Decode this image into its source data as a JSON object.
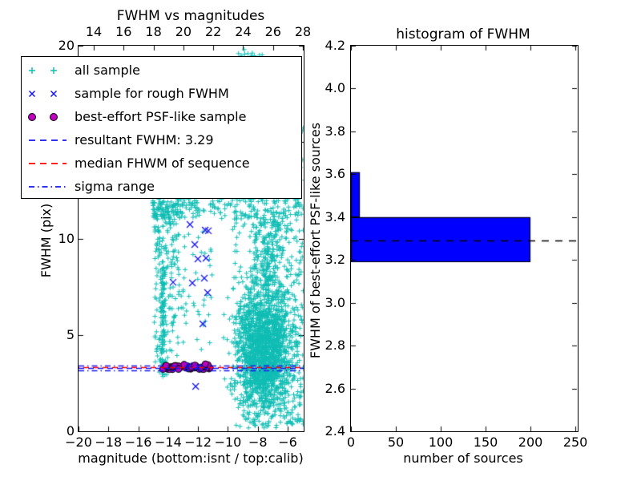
{
  "figure": {
    "background": "#ffffff"
  },
  "chart_data": [
    {
      "id": "fwhm-vs-magnitudes",
      "type": "scatter",
      "title": "FWHM vs magnitudes",
      "xlabel": "magnitude (bottom:isnt / top:calib)",
      "ylabel": "FWHM (pix)",
      "xlim": [
        -20,
        -4.93
      ],
      "ylim": [
        0,
        20
      ],
      "grid": false,
      "bottom_ticks": {
        "values": [
          -20,
          -18,
          -16,
          -14,
          -12,
          -10,
          -8,
          -6
        ],
        "labels": [
          "−20",
          "−18",
          "−16",
          "−14",
          "−12",
          "−10",
          "−8",
          "−6"
        ]
      },
      "top_ticks": {
        "axis_name": "calib magnitude",
        "values": [
          14,
          16,
          18,
          20,
          22,
          24,
          26,
          28
        ],
        "labels": [
          "14",
          "16",
          "18",
          "20",
          "22",
          "24",
          "26",
          "28"
        ],
        "calib_to_isnt_offset": -32.98
      },
      "y_ticks": {
        "values": [
          0,
          5,
          10,
          15,
          20
        ],
        "labels": [
          "0",
          "5",
          "10",
          "15",
          "20"
        ]
      },
      "series": [
        {
          "name": "all sample",
          "marker": "+",
          "color": "#10bdb4",
          "point_clusters": [
            {
              "x": [
                -15.05,
                -13.0
              ],
              "y": [
                11.0,
                12.05
              ],
              "n": 115
            },
            {
              "x": [
                -13.0,
                -9.6
              ],
              "y": [
                11.0,
                12.05
              ],
              "n": 55
            },
            {
              "x": [
                -9.6,
                -4.95
              ],
              "y": [
                11.0,
                12.05
              ],
              "n": 105
            },
            {
              "x": [
                -14.95,
                -13.25
              ],
              "y": [
                8.0,
                11.0
              ],
              "n": 95
            },
            {
              "x": [
                -14.95,
                -13.25
              ],
              "y": [
                4.5,
                8.0
              ],
              "n": 60
            },
            {
              "x": [
                -14.95,
                -13.3
              ],
              "y": [
                3.0,
                4.5
              ],
              "n": 22
            },
            {
              "mx": -14.35,
              "sx": 0.09,
              "y": [
                2.8,
                8.6
              ],
              "n": 90
            },
            {
              "x": [
                -13.25,
                -11.0
              ],
              "y": [
                4.2,
                11.0
              ],
              "n": 42
            },
            {
              "mx": -7.6,
              "sx": 0.95,
              "my": 4.5,
              "sy": 1.55,
              "n": 1500
            },
            {
              "x": [
                -9.7,
                -4.95
              ],
              "y": [
                1.3,
                11.0
              ],
              "n": 300
            },
            {
              "mx": -7.3,
              "sx": 0.6,
              "y": [
                7.5,
                11.0
              ],
              "n": 180
            },
            {
              "x": [
                -9.0,
                -4.95
              ],
              "y": [
                0.15,
                2.2
              ],
              "n": 115
            },
            {
              "mx": -7.6,
              "sx": 0.9,
              "y": [
                2.2,
                3.2
              ],
              "n": 95
            },
            {
              "x": [
                -5.55,
                -4.95
              ],
              "y": [
                3.5,
                16.3
              ],
              "n": 24
            },
            {
              "x": [
                -9.45,
                -8.2
              ],
              "y": [
                19.25,
                19.8
              ],
              "n": 13
            },
            {
              "x": [
                -7.9,
                -7.7
              ],
              "y": [
                19.4,
                19.55
              ],
              "n": 2
            }
          ]
        },
        {
          "name": "sample for rough FWHM",
          "marker": "x",
          "color": "#1515ee",
          "points": [
            [
              -12.54,
              10.73
            ],
            [
              -11.52,
              10.44
            ],
            [
              -11.31,
              10.4
            ],
            [
              -12.22,
              9.69
            ],
            [
              -12.01,
              8.94
            ],
            [
              -11.47,
              8.98
            ],
            [
              -11.58,
              7.94
            ],
            [
              -13.67,
              7.73
            ],
            [
              -12.38,
              7.69
            ],
            [
              -11.36,
              7.19
            ],
            [
              -11.68,
              5.57
            ],
            [
              -12.16,
              2.33
            ],
            [
              -12.59,
              3.41
            ],
            [
              -12.0,
              3.33
            ]
          ]
        },
        {
          "name": "best-effort PSF-like sample",
          "marker": "o",
          "color": "#bf00bf",
          "edge_color": "#000000",
          "band": {
            "x": [
              -14.35,
              -11.15
            ],
            "y_main": [
              3.21,
              3.41
            ],
            "n_main": 44,
            "y_upper": [
              3.41,
              3.56
            ],
            "n_upper": 5
          }
        }
      ],
      "hlines": [
        {
          "name": "sigma range (upper)",
          "y": 3.4,
          "color": "#1515ee",
          "style": "dashdot"
        },
        {
          "name": "median FHWM of sequence",
          "y": 3.33,
          "color": "#ff0000",
          "style": "dashed"
        },
        {
          "name": "resultant FWHM",
          "y": 3.29,
          "color": "#1515ee",
          "style": "dashed"
        },
        {
          "name": "sigma range (lower)",
          "y": 3.18,
          "color": "#1515ee",
          "style": "dashdot"
        }
      ],
      "resultant_fwhm": 3.29
    },
    {
      "id": "histogram-of-fwhm",
      "type": "bar",
      "orientation": "horizontal",
      "title": "histogram of FWHM",
      "xlabel": "number of sources",
      "ylabel": "FWHM of best-effort PSF-like sources",
      "xlim": [
        0,
        251.7
      ],
      "ylim": [
        2.4,
        4.2
      ],
      "grid": false,
      "x_ticks": {
        "values": [
          0,
          50,
          100,
          150,
          200,
          250
        ],
        "labels": [
          "0",
          "50",
          "100",
          "150",
          "200",
          "250"
        ]
      },
      "y_ticks": {
        "values": [
          2.4,
          2.6,
          2.8,
          3.0,
          3.2,
          3.4,
          3.6,
          3.8,
          4.0,
          4.2
        ],
        "labels": [
          "2.4",
          "2.6",
          "2.8",
          "3.0",
          "3.2",
          "3.4",
          "3.6",
          "3.8",
          "4.0",
          "4.2"
        ]
      },
      "bars": [
        {
          "bin_from": 3.19,
          "bin_to": 3.4,
          "count": 200
        },
        {
          "bin_from": 3.4,
          "bin_to": 3.61,
          "count": 10
        }
      ],
      "bar_color": "#0000ff",
      "bar_edge_color": "#000000",
      "hlines": [
        {
          "name": "resultant FWHM",
          "y": 3.29,
          "color": "#000000",
          "style": "dashed"
        }
      ]
    }
  ],
  "legend": {
    "entries": [
      {
        "label": "all sample",
        "marker": "plus-pair",
        "color": "#10bdb4"
      },
      {
        "label": "sample for rough FWHM",
        "marker": "cross-pair",
        "color": "#1515ee"
      },
      {
        "label": "best-effort PSF-like sample",
        "marker": "circle-pair",
        "color": "#bf00bf",
        "edge_color": "#000000"
      },
      {
        "label": "resultant FWHM: 3.29",
        "marker": "line-dashed",
        "color": "#1515ee"
      },
      {
        "label": "median FHWM of sequence",
        "marker": "line-dashed",
        "color": "#ff0000"
      },
      {
        "label": "sigma range",
        "marker": "line-dashdot",
        "color": "#1515ee"
      }
    ]
  }
}
